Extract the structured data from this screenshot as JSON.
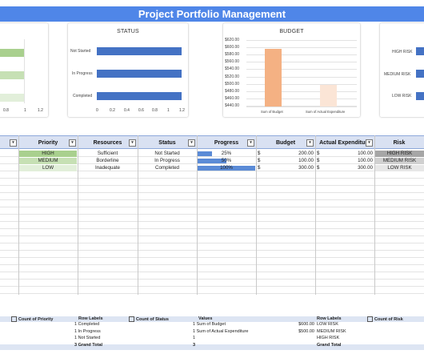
{
  "title": "Project Portfolio Management",
  "status_chart": {
    "title": "STATUS",
    "categories": [
      "Not Started",
      "In Progress",
      "Completed"
    ],
    "xticks": [
      "0",
      "0.2",
      "0.4",
      "0.6",
      "0.8",
      "1",
      "1.2"
    ]
  },
  "priority_chart_partial": {
    "xticks": [
      "0.8",
      "1",
      "1.2"
    ]
  },
  "budget_chart": {
    "title": "BUDGET",
    "yticks": [
      "$620.00",
      "$600.00",
      "$580.00",
      "$560.00",
      "$540.00",
      "$520.00",
      "$500.00",
      "$480.00",
      "$460.00",
      "$440.00"
    ],
    "categories": [
      "Sum of Budget",
      "Sum of Actual Expenditure"
    ]
  },
  "risk_chart": {
    "categories": [
      "HIGH RISK",
      "MEDIUM RISK",
      "LOW RISK"
    ]
  },
  "chart_data": [
    {
      "type": "bar",
      "title": "STATUS",
      "categories": [
        "Not Started",
        "In Progress",
        "Completed"
      ],
      "values": [
        1,
        1,
        1
      ],
      "xlim": [
        0,
        1.2
      ],
      "orientation": "horizontal"
    },
    {
      "type": "bar",
      "title": "BUDGET",
      "categories": [
        "Sum of Budget",
        "Sum of Actual Expenditure"
      ],
      "values": [
        600,
        500
      ],
      "ylim": [
        440,
        620
      ]
    }
  ],
  "table": {
    "headers": [
      "Priority",
      "Resources",
      "Status",
      "Progress",
      "Budget",
      "Actual Expenditure",
      "Risk"
    ],
    "rows": [
      {
        "priority": "HIGH",
        "resources": "Sufficient",
        "status": "Not Started",
        "progress": "25%",
        "progress_value": 25,
        "budget_sym": "$",
        "budget": "200.00",
        "actual_sym": "$",
        "actual": "100.00",
        "risk": "HIGH RISK"
      },
      {
        "priority": "MEDIUM",
        "resources": "Borderline",
        "status": "In Progress",
        "progress": "50%",
        "progress_value": 50,
        "budget_sym": "$",
        "budget": "100.00",
        "actual_sym": "$",
        "actual": "100.00",
        "risk": "MEDIUM RISK"
      },
      {
        "priority": "LOW",
        "resources": "Inadequate",
        "status": "Completed",
        "progress": "100%",
        "progress_value": 100,
        "budget_sym": "$",
        "budget": "300.00",
        "actual_sym": "$",
        "actual": "300.00",
        "risk": "LOW RISK"
      }
    ]
  },
  "pivots": {
    "p1": {
      "header": "Count of Priority",
      "label_hdr": "Row Labels",
      "rows": [
        "1 Completed",
        "1 In Progress",
        "1 Not Started",
        "3 Grand Total"
      ]
    },
    "p2": {
      "header": "Count of Status",
      "label_hdr": "Values",
      "rows": [
        "1 Sum of Budget",
        "1 Sum of Actual Expenditure",
        "1",
        "3"
      ]
    },
    "p3": {
      "vals": [
        "$600.00",
        "$500.00",
        "",
        ""
      ],
      "label_hdr": "Row Labels",
      "rows": [
        "LOW RISK",
        "MEDIUM RISK",
        "HIGH RISK",
        "Grand Total"
      ],
      "count_hdr": "Count of Risk"
    }
  },
  "colors": {
    "accent": "#4f86e8",
    "bar_blue": "#4472c4",
    "bar_orange": "#f4b183",
    "bar_peach": "#fbe5d6",
    "priority_high": "#a9d08e",
    "priority_medium": "#c6e0b4",
    "priority_low": "#e2efda",
    "risk_high": "#a6a6a6",
    "risk_medium": "#d0d0d0",
    "risk_low": "#e7e7e7"
  }
}
